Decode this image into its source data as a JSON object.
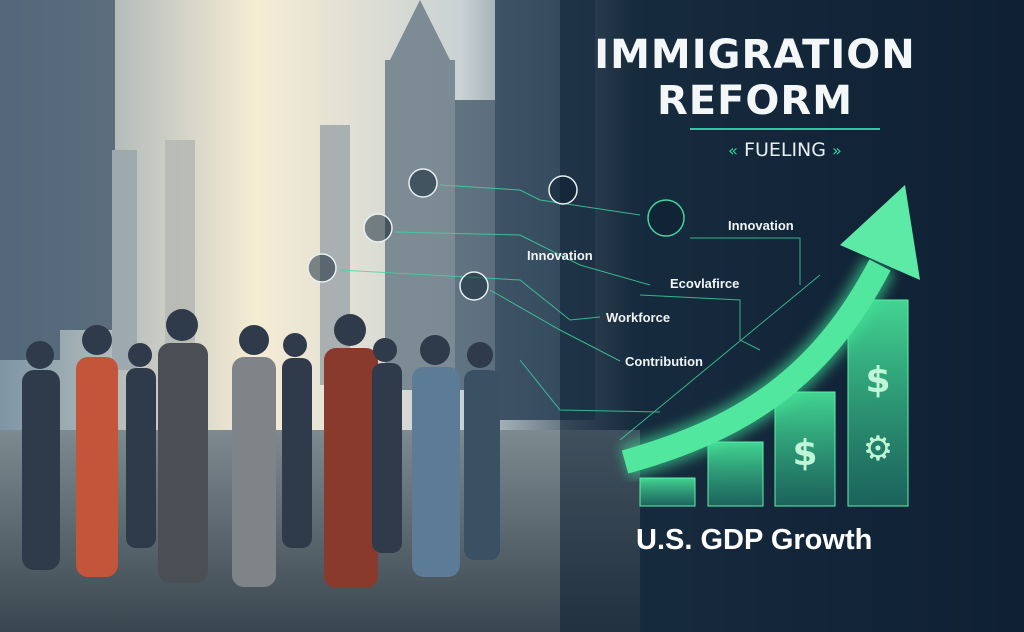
{
  "title": {
    "line1": "IMMIGRATION",
    "line2": "REFORM"
  },
  "subtitle": {
    "text": "FUELING",
    "left_icon": "double-chevron-left-icon",
    "right_icon": "double-chevron-right-icon"
  },
  "labels": [
    "Innovation",
    "Innovation",
    "Ecovlafirce",
    "Workforce",
    "Contribution"
  ],
  "footer": {
    "text": "U.S. GDP Growth"
  },
  "bar_icons": [
    "dollar-icon",
    "dollar-icon",
    "gear-icon"
  ],
  "node_icons": [
    "scales-icon",
    "microscope-icon",
    "graduation-cap-icon",
    "lab-flask-icon",
    "factory-icon",
    "briefcase-icon"
  ],
  "colors": {
    "accent": "#3fe39a",
    "teal": "#2ec6a4",
    "background": "#0f2033",
    "sky": "#f3e9d2"
  }
}
